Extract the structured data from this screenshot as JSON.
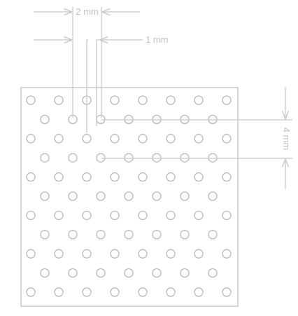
{
  "labels": {
    "hole_spacing": "2 mm",
    "hole_diameter": "1 mm",
    "row_pitch": "4 mm"
  },
  "grid": {
    "long_rows": 6,
    "holes_per_long_row": 8,
    "short_rows": 5,
    "holes_per_short_row": 7
  },
  "colors": {
    "line": "#c8c8c8",
    "hole": "#b8b8b8",
    "text": "#c2c2c2",
    "background": "#ffffff"
  }
}
